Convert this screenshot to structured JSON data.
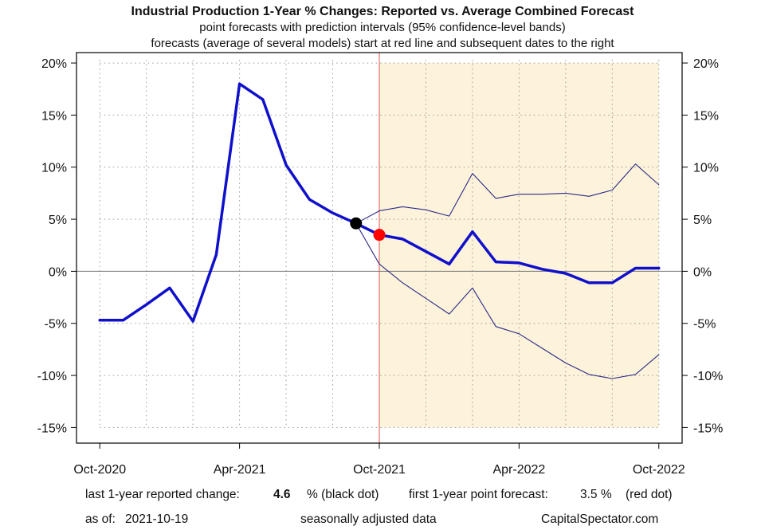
{
  "chart_data": {
    "type": "line",
    "title": "Industrial Production 1-Year % Changes: Reported vs. Average Combined Forecast",
    "subtitle_lines": [
      "point forecasts with prediction intervals (95% confidence-level bands)",
      "forecasts (average of several models) start at red line and subsequent dates to the right"
    ],
    "x_tick_labels": [
      "Oct-2020",
      "Apr-2021",
      "Oct-2021",
      "Apr-2022",
      "Oct-2022"
    ],
    "x_tick_months": [
      "2020-10",
      "2021-04",
      "2021-10",
      "2022-04",
      "2022-10"
    ],
    "y_tick_values": [
      20,
      15,
      10,
      5,
      0,
      -5,
      -10,
      -15
    ],
    "y_tick_labels": [
      "20%",
      "15%",
      "10%",
      "5%",
      "0%",
      "-5%",
      "-10%",
      "-15%"
    ],
    "ylim": [
      -16.5,
      21
    ],
    "xlim": [
      "2020-09",
      "2022-11"
    ],
    "grid": true,
    "forecast_start": "2021-10",
    "shaded_forecast_region": {
      "from": "2021-10",
      "to": "2022-10",
      "ylim": [
        -15,
        20
      ]
    },
    "series": [
      {
        "key": "reported",
        "values": [
          [
            "2020-10",
            -4.7
          ],
          [
            "2020-11",
            -4.7
          ],
          [
            "2020-12",
            -3.2
          ],
          [
            "2021-01",
            -1.6
          ],
          [
            "2021-02",
            -4.8
          ],
          [
            "2021-03",
            1.6
          ],
          [
            "2021-04",
            18.0
          ],
          [
            "2021-05",
            16.5
          ],
          [
            "2021-06",
            10.2
          ],
          [
            "2021-07",
            6.9
          ],
          [
            "2021-08",
            5.6
          ],
          [
            "2021-09",
            4.6
          ]
        ]
      },
      {
        "key": "forecast",
        "values": [
          [
            "2021-09",
            4.6
          ],
          [
            "2021-10",
            3.5
          ],
          [
            "2021-11",
            3.1
          ],
          [
            "2021-12",
            1.9
          ],
          [
            "2022-01",
            0.7
          ],
          [
            "2022-02",
            3.8
          ],
          [
            "2022-03",
            0.9
          ],
          [
            "2022-04",
            0.8
          ],
          [
            "2022-05",
            0.2
          ],
          [
            "2022-06",
            -0.2
          ],
          [
            "2022-07",
            -1.1
          ],
          [
            "2022-08",
            -1.1
          ],
          [
            "2022-09",
            0.3
          ],
          [
            "2022-10",
            0.3
          ]
        ]
      },
      {
        "key": "upper_95",
        "values": [
          [
            "2021-09",
            4.6
          ],
          [
            "2021-10",
            5.8
          ],
          [
            "2021-11",
            6.2
          ],
          [
            "2021-12",
            5.9
          ],
          [
            "2022-01",
            5.3
          ],
          [
            "2022-02",
            9.4
          ],
          [
            "2022-03",
            7.0
          ],
          [
            "2022-04",
            7.4
          ],
          [
            "2022-05",
            7.4
          ],
          [
            "2022-06",
            7.5
          ],
          [
            "2022-07",
            7.2
          ],
          [
            "2022-08",
            7.8
          ],
          [
            "2022-09",
            10.3
          ],
          [
            "2022-10",
            8.3
          ]
        ]
      },
      {
        "key": "lower_95",
        "values": [
          [
            "2021-09",
            4.6
          ],
          [
            "2021-10",
            0.7
          ],
          [
            "2021-11",
            -1.1
          ],
          [
            "2021-12",
            -2.6
          ],
          [
            "2022-01",
            -4.1
          ],
          [
            "2022-02",
            -1.6
          ],
          [
            "2022-03",
            -5.3
          ],
          [
            "2022-04",
            -6.0
          ],
          [
            "2022-05",
            -7.4
          ],
          [
            "2022-06",
            -8.8
          ],
          [
            "2022-07",
            -9.9
          ],
          [
            "2022-08",
            -10.3
          ],
          [
            "2022-09",
            -9.9
          ],
          [
            "2022-10",
            -8.0
          ]
        ]
      }
    ],
    "markers": [
      {
        "key": "last_reported",
        "date": "2021-09",
        "value": 4.6,
        "color": "#000000"
      },
      {
        "key": "first_forecast",
        "date": "2021-10",
        "value": 3.5,
        "color": "#ff0000"
      }
    ],
    "colors": {
      "main_line": "#1010cc",
      "band_line": "#2a2a8a",
      "forecast_vline": "#e05050",
      "shade": "#fdf3da",
      "zero_line": "#777777",
      "red_dot_label": "#ff6666"
    }
  },
  "footer": {
    "last_change_label": "last 1-year reported change:",
    "last_change_value": "4.6",
    "last_change_suffix": "% (black dot)",
    "first_forecast_label": "first 1-year point forecast:",
    "first_forecast_value": "3.5 %",
    "first_forecast_suffix": "(red dot)",
    "as_of_label": "as of:",
    "as_of_value": "2021-10-19",
    "adjustment_note": "seasonally adjusted data",
    "source": "CapitalSpectator.com"
  }
}
